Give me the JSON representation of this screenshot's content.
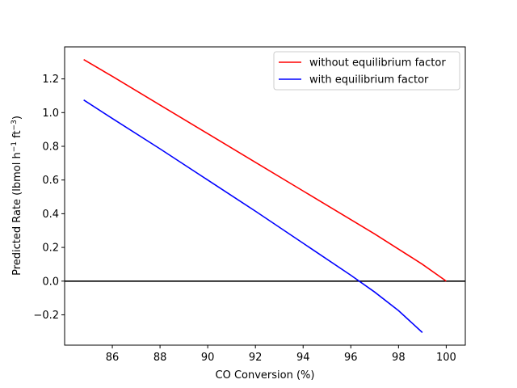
{
  "chart_data": {
    "type": "line",
    "title": "",
    "xlabel": "CO Conversion (%)",
    "ylabel": {
      "pre": "Predicted Rate (lbmol h",
      "sup1": "−1",
      "mid": " ft",
      "sup2": "−3",
      "post": ")"
    },
    "xlim": [
      84.0,
      100.8
    ],
    "ylim": [
      -0.38,
      1.39
    ],
    "xticks": [
      86,
      88,
      90,
      92,
      94,
      96,
      98,
      100
    ],
    "yticks": [
      -0.2,
      0.0,
      0.2,
      0.4,
      0.6,
      0.8,
      1.0,
      1.2
    ],
    "ytick_labels": [
      "−0.2",
      "0.0",
      "0.2",
      "0.4",
      "0.6",
      "0.8",
      "1.0",
      "1.2"
    ],
    "hline": {
      "y": 0.0,
      "color": "#000000"
    },
    "legend_position": "top-right",
    "grid": false,
    "series": [
      {
        "name": "without equilibrium factor",
        "color": "#ff0000",
        "x": [
          84.8,
          86,
          88,
          90,
          92,
          94,
          96,
          97,
          98,
          99,
          100
        ],
        "y": [
          1.315,
          1.215,
          1.045,
          0.875,
          0.705,
          0.535,
          0.365,
          0.28,
          0.19,
          0.1,
          0.0
        ]
      },
      {
        "name": "with equilibrium factor",
        "color": "#0000ff",
        "x": [
          84.8,
          86,
          88,
          90,
          92,
          94,
          96,
          97,
          98,
          99
        ],
        "y": [
          1.075,
          0.965,
          0.785,
          0.6,
          0.415,
          0.225,
          0.035,
          -0.065,
          -0.175,
          -0.305
        ]
      }
    ]
  }
}
